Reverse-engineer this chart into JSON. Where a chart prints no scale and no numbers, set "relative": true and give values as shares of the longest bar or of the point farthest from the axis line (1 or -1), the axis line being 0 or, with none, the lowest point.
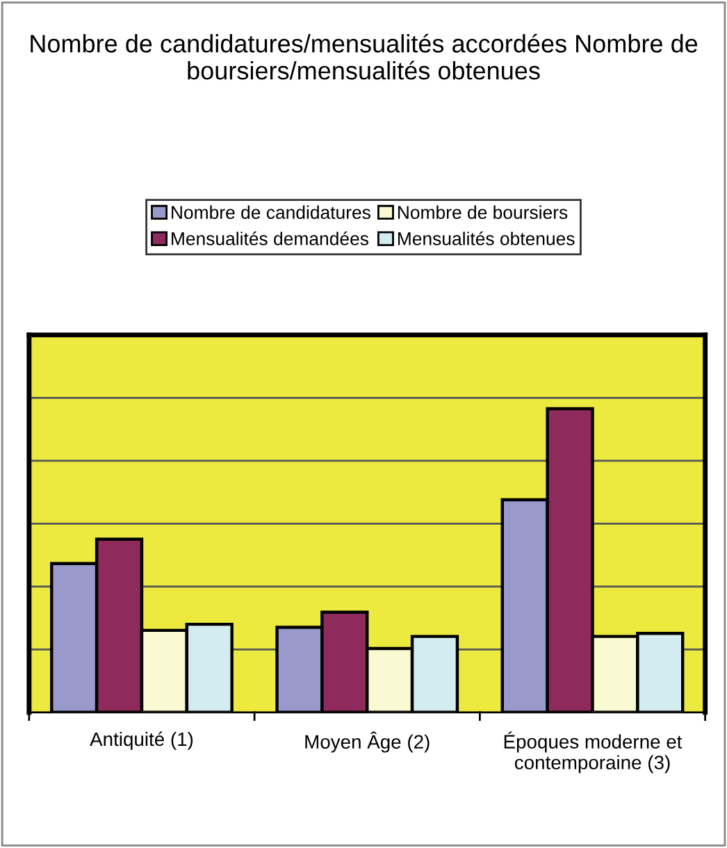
{
  "chart_data": {
    "type": "bar",
    "title": "Nombre de candidatures/mensualités accordées Nombre de boursiers/mensualités obtenues",
    "categories": [
      "Antiquité (1)",
      "Moyen Âge (2)",
      "Époques moderne et\ncontemporaine (3)"
    ],
    "relative": true,
    "grid": "y",
    "legend": "top",
    "series": [
      {
        "name": "Nombre de candidatures",
        "color": "#9999cc",
        "values": [
          0.49,
          0.28,
          0.7
        ]
      },
      {
        "name": "Mensualités demandées",
        "color": "#8e2b5c",
        "values": [
          0.57,
          0.33,
          1.0
        ]
      },
      {
        "name": "Nombre de boursiers",
        "color": "#fafad2",
        "values": [
          0.27,
          0.21,
          0.25
        ]
      },
      {
        "name": "Mensualités obtenues",
        "color": "#d2ecf0",
        "values": [
          0.29,
          0.25,
          0.26
        ]
      }
    ]
  }
}
